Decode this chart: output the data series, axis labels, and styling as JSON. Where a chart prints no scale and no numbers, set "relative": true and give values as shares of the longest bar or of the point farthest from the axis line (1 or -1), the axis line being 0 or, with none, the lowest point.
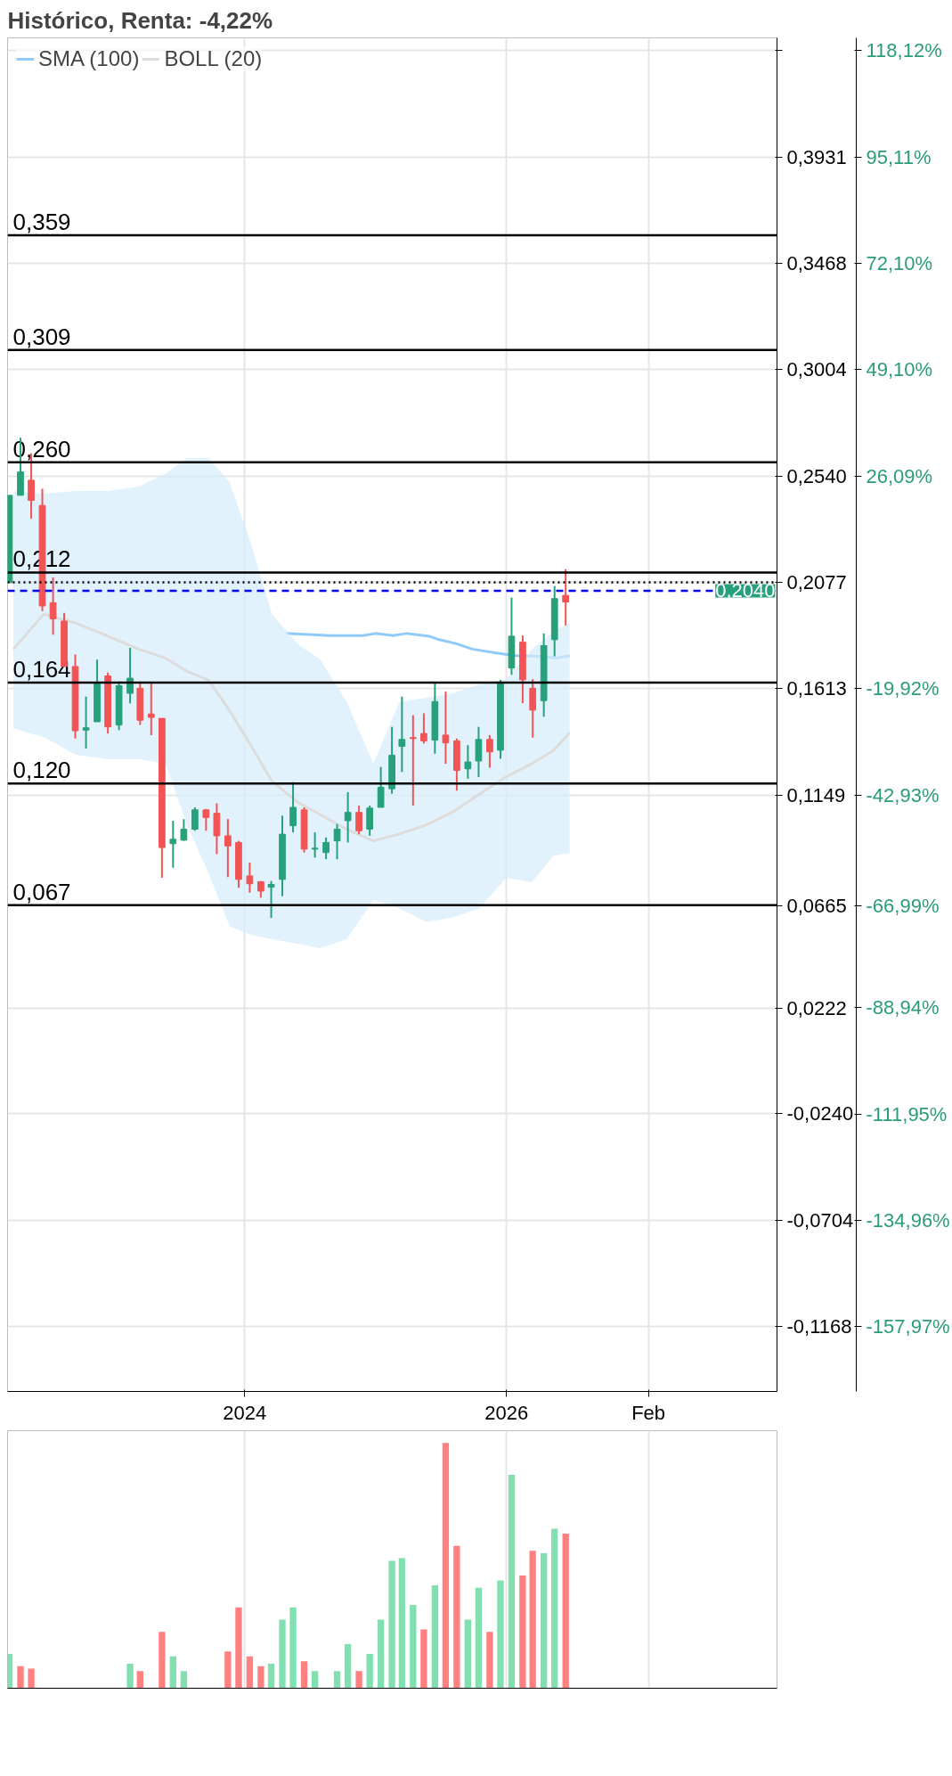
{
  "chart_data": [
    {
      "type": "candlestick",
      "title": "Histórico, Renta: -4,22%",
      "x": [
        "2022-03-15",
        "2022-04-15",
        "2022-05-15",
        "2022-06-15",
        "2022-07-15",
        "2022-08-15",
        "2022-09-15",
        "2022-10-15",
        "2022-11-15",
        "2022-12-15",
        "2023-01-15",
        "2023-02-15",
        "2023-03-15",
        "2023-04-15",
        "2023-05-15",
        "2023-06-15",
        "2023-07-15",
        "2023-08-15",
        "2023-09-15",
        "2023-10-15",
        "2023-11-15",
        "2023-12-15",
        "2024-01-15",
        "2024-02-15",
        "2024-03-15",
        "2024-04-15",
        "2024-05-15",
        "2024-06-15",
        "2024-07-15",
        "2024-08-15",
        "2024-09-15",
        "2024-10-15",
        "2024-11-15",
        "2024-12-15",
        "2025-01-15",
        "2025-02-15",
        "2025-03-15",
        "2025-04-15",
        "2025-05-15",
        "2025-06-15",
        "2025-07-15",
        "2025-08-15",
        "2025-09-15",
        "2025-10-15",
        "2025-11-15",
        "2025-12-15",
        "2026-01-15",
        "2026-02-15",
        "2026-03-15",
        "2026-04-15",
        "2026-05-15",
        "2026-06-15"
      ],
      "ohlc": [
        [
          0.2076,
          0.2456,
          0.2076,
          0.2456
        ],
        [
          0.2456,
          0.2707,
          0.2456,
          0.2558
        ],
        [
          0.2522,
          0.2639,
          0.2354,
          0.2434
        ],
        [
          0.2412,
          0.2485,
          0.1952,
          0.1974
        ],
        [
          0.1988,
          0.2098,
          0.1849,
          0.1918
        ],
        [
          0.1908,
          0.1944,
          0.171,
          0.171
        ],
        [
          0.171,
          0.1762,
          0.1396,
          0.143
        ],
        [
          0.1433,
          0.1579,
          0.1352,
          0.1443
        ],
        [
          0.1469,
          0.174,
          0.1469,
          0.1642
        ],
        [
          0.1669,
          0.1684,
          0.1418,
          0.1447
        ],
        [
          0.1455,
          0.1645,
          0.1433,
          0.1626
        ],
        [
          0.1593,
          0.1791,
          0.155,
          0.1659
        ],
        [
          0.1615,
          0.1645,
          0.1455,
          0.1476
        ],
        [
          0.1503,
          0.1637,
          0.1411,
          0.1488
        ],
        [
          0.1484,
          0.1484,
          0.0789,
          0.0921
        ],
        [
          0.0938,
          0.1038,
          0.0833,
          0.0957
        ],
        [
          0.0953,
          0.1045,
          0.095,
          0.1001
        ],
        [
          0.1001,
          0.1096,
          0.0994,
          0.1085
        ],
        [
          0.1085,
          0.1089,
          0.0994,
          0.1052
        ],
        [
          0.107,
          0.1114,
          0.0892,
          0.0972
        ],
        [
          0.0972,
          0.1045,
          0.0792,
          0.0928
        ],
        [
          0.0943,
          0.095,
          0.0745,
          0.0782
        ],
        [
          0.0797,
          0.0855,
          0.0724,
          0.0763
        ],
        [
          0.0772,
          0.0775,
          0.0702,
          0.0731
        ],
        [
          0.0748,
          0.0775,
          0.0614,
          0.076
        ],
        [
          0.0782,
          0.106,
          0.0709,
          0.0979
        ],
        [
          0.1016,
          0.1206,
          0.0987,
          0.1096
        ],
        [
          0.1085,
          0.1096,
          0.0899,
          0.0914
        ],
        [
          0.0914,
          0.0987,
          0.0877,
          0.0918
        ],
        [
          0.0899,
          0.0965,
          0.087,
          0.0943
        ],
        [
          0.095,
          0.1023,
          0.087,
          0.1001
        ],
        [
          0.1038,
          0.1162,
          0.0943,
          0.1074
        ],
        [
          0.1074,
          0.1104,
          0.0979,
          0.0994
        ],
        [
          0.1001,
          0.1104,
          0.0972,
          0.1093
        ],
        [
          0.1096,
          0.1272,
          0.1096,
          0.1184
        ],
        [
          0.1177,
          0.1447,
          0.1155,
          0.1323
        ],
        [
          0.1362,
          0.1579,
          0.125,
          0.1392
        ],
        [
          0.14,
          0.1498,
          0.1104,
          0.1396
        ],
        [
          0.1418,
          0.1506,
          0.1374,
          0.1386
        ],
        [
          0.1389,
          0.1637,
          0.133,
          0.1557
        ],
        [
          0.1411,
          0.1601,
          0.1286,
          0.1377
        ],
        [
          0.1386,
          0.1396,
          0.1169,
          0.1257
        ],
        [
          0.1264,
          0.1367,
          0.1221,
          0.1294
        ],
        [
          0.1298,
          0.1447,
          0.1228,
          0.1392
        ],
        [
          0.1392,
          0.1411,
          0.1269,
          0.1338
        ],
        [
          0.1345,
          0.1652,
          0.1308,
          0.164
        ],
        [
          0.1703,
          0.201,
          0.1674,
          0.1842
        ],
        [
          0.1816,
          0.1845,
          0.155,
          0.1652
        ],
        [
          0.1615,
          0.1655,
          0.14,
          0.152
        ],
        [
          0.1561,
          0.1854,
          0.1491,
          0.1801
        ],
        [
          0.1827,
          0.2061,
          0.1754,
          0.2006
        ],
        [
          0.202,
          0.2134,
          0.1889,
          0.1991
        ]
      ],
      "colors": [
        "#26a17b",
        "#26a17b",
        "#f05454",
        "#f05454",
        "#f05454",
        "#f05454",
        "#f05454",
        "#26a17b",
        "#26a17b",
        "#f05454",
        "#26a17b",
        "#26a17b",
        "#f05454",
        "#f05454",
        "#f05454",
        "#26a17b",
        "#26a17b",
        "#26a17b",
        "#f05454",
        "#f05454",
        "#f05454",
        "#f05454",
        "#f05454",
        "#f05454",
        "#26a17b",
        "#26a17b",
        "#26a17b",
        "#f05454",
        "#26a17b",
        "#26a17b",
        "#26a17b",
        "#26a17b",
        "#f05454",
        "#26a17b",
        "#26a17b",
        "#26a17b",
        "#26a17b",
        "#f05454",
        "#f05454",
        "#26a17b",
        "#f05454",
        "#f05454",
        "#26a17b",
        "#26a17b",
        "#f05454",
        "#26a17b",
        "#26a17b",
        "#f05454",
        "#f05454",
        "#26a17b",
        "#26a17b",
        "#f05454"
      ],
      "series": [
        {
          "name": "SMA (100)",
          "type": "line",
          "color": "#90caf9",
          "x": [
            "2024-04-25",
            "2024-08-27",
            "2024-11-26",
            "2024-12-30",
            "2025-02-19",
            "2025-03-27",
            "2025-05-30",
            "2025-06-27",
            "2025-08-12",
            "2025-09-27",
            "2025-12-03",
            "2026-01-24",
            "2026-04-05",
            "2026-05-18",
            "2026-06-27"
          ],
          "values": [
            0.1854,
            0.1845,
            0.1845,
            0.1854,
            0.1845,
            0.1854,
            0.1842,
            0.1827,
            0.181,
            0.1786,
            0.1769,
            0.1757,
            0.1754,
            0.1747,
            0.1757
          ]
        },
        {
          "name": "BOLL (20)",
          "type": "line",
          "color": "#dcdcdc",
          "x": [
            "2022-03-26",
            "2022-06-19",
            "2022-09-16",
            "2022-12-14",
            "2023-03-12",
            "2023-05-25",
            "2023-07-24",
            "2023-09-22",
            "2023-11-20",
            "2024-01-19",
            "2024-03-17",
            "2024-05-31",
            "2024-07-29",
            "2024-10-12",
            "2024-12-25",
            "2025-03-08",
            "2025-05-21",
            "2025-08-04",
            "2025-10-17",
            "2025-12-31",
            "2026-03-13",
            "2026-05-12",
            "2026-06-26"
          ],
          "values": [
            0.1785,
            0.1938,
            0.19,
            0.1843,
            0.1785,
            0.1747,
            0.1689,
            0.1651,
            0.1517,
            0.1364,
            0.121,
            0.1115,
            0.1065,
            0.1,
            0.095,
            0.098,
            0.1019,
            0.1076,
            0.1153,
            0.1229,
            0.1287,
            0.1344,
            0.1421
          ],
          "lower": [
            0.144,
            0.1402,
            0.1325,
            0.1306,
            0.1306,
            0.1287,
            0.1019,
            0.0808,
            0.0578,
            0.054,
            0.0521,
            0.0501,
            0.0482,
            0.0521,
            0.0693,
            0.0655,
            0.0597,
            0.0616,
            0.0655,
            0.0789,
            0.077,
            0.0885,
            0.0896
          ],
          "upper": [
            0.2475,
            0.2463,
            0.2475,
            0.2475,
            0.2494,
            0.2551,
            0.262,
            0.262,
            0.2513,
            0.2245,
            0.1938,
            0.1804,
            0.1743,
            0.1555,
            0.1287,
            0.1555,
            0.1574,
            0.1593,
            0.1632,
            0.1655,
            0.1785,
            0.1862,
            0.19
          ]
        }
      ],
      "xlim": [
        "2022-03-10",
        "2028-01-26"
      ],
      "xticks": [
        "2024",
        "2026",
        {
          "value": "2027-02",
          "label": "Feb"
        }
      ],
      "ylim": [
        -0.145,
        0.445
      ],
      "yticks": [
        {
          "value": 0.4394,
          "label": null
        },
        {
          "value": 0.3931,
          "label": "0,3931"
        },
        {
          "value": 0.3468,
          "label": "0,3468"
        },
        {
          "value": 0.3004,
          "label": "0,3004"
        },
        {
          "value": 0.254,
          "label": "0,2540"
        },
        {
          "value": 0.2077,
          "label": "0,2077"
        },
        {
          "value": 0.1613,
          "label": "0,1613"
        },
        {
          "value": 0.1149,
          "label": "0,1149"
        },
        {
          "value": 0.0665,
          "label": "0,0665"
        },
        {
          "value": 0.0222,
          "label": "0,0222"
        },
        {
          "value": -0.024,
          "label": "-0,0240"
        },
        {
          "value": -0.0704,
          "label": "-0,0704"
        },
        {
          "value": -0.1168,
          "label": "-0,1168"
        }
      ],
      "y2lim": [
        -171.98,
        120.91
      ],
      "y2ticks": [
        {
          "value": 118.12,
          "label": "118,12%"
        },
        {
          "value": 95.11,
          "label": "95,11%"
        },
        {
          "value": 72.1,
          "label": "72,10%"
        },
        {
          "value": 49.1,
          "label": "49,10%"
        },
        {
          "value": 26.09,
          "label": "26,09%"
        },
        {
          "value": -19.92,
          "label": "-19,92%"
        },
        {
          "value": -42.93,
          "label": "-42,93%"
        },
        {
          "value": -66.99,
          "label": "-66,99%"
        },
        {
          "value": -88.94,
          "label": "-88,94%"
        },
        {
          "value": -111.95,
          "label": "-111,95%"
        },
        {
          "value": -134.96,
          "label": "-134,96%"
        },
        {
          "value": -157.97,
          "label": "-157,97%"
        }
      ],
      "ref_lines": [
        {
          "axis": "y",
          "value": 0.359,
          "label": "0,359"
        },
        {
          "axis": "y",
          "value": 0.309,
          "label": "0,309"
        },
        {
          "axis": "y",
          "value": 0.26,
          "label": "0,260"
        },
        {
          "axis": "y",
          "value": 0.212,
          "label": "0,212"
        },
        {
          "axis": "y",
          "value": 0.164,
          "label": "0,164"
        },
        {
          "axis": "y",
          "value": 0.12,
          "label": "0,120"
        },
        {
          "axis": "y",
          "value": 0.067,
          "label": "0,067"
        },
        {
          "axis": "y",
          "value": 0.2077,
          "label": null,
          "line_style": "dotted"
        },
        {
          "axis": "y",
          "value": 0.204,
          "label": "0,2040",
          "color": "#0000ff",
          "line_style": "dashed"
        }
      ],
      "grid": true,
      "legend": "top left"
    },
    {
      "type": "bar",
      "relative": true,
      "x": [
        "2022-03-15",
        "2022-04-15",
        "2022-05-15",
        "2023-02-15",
        "2023-03-15",
        "2023-05-15",
        "2023-06-15",
        "2023-07-15",
        "2023-11-15",
        "2023-12-15",
        "2024-01-15",
        "2024-02-15",
        "2024-03-15",
        "2024-04-15",
        "2024-05-15",
        "2024-06-15",
        "2024-07-15",
        "2024-09-15",
        "2024-10-15",
        "2024-11-15",
        "2024-12-15",
        "2025-01-15",
        "2025-02-15",
        "2025-03-15",
        "2025-04-15",
        "2025-05-15",
        "2025-06-15",
        "2025-07-15",
        "2025-08-15",
        "2025-09-15",
        "2025-10-15",
        "2025-11-15",
        "2025-12-15",
        "2026-01-15",
        "2026-02-15",
        "2026-03-15",
        "2026-04-15",
        "2026-05-15",
        "2026-06-15"
      ],
      "values": [
        0.14,
        0.09,
        0.08,
        0.1,
        0.07,
        0.23,
        0.13,
        0.07,
        0.15,
        0.33,
        0.13,
        0.09,
        0.1,
        0.28,
        0.33,
        0.11,
        0.07,
        0.07,
        0.18,
        0.07,
        0.14,
        0.28,
        0.52,
        0.53,
        0.34,
        0.24,
        0.42,
        1,
        0.58,
        0.28,
        0.41,
        0.23,
        0.44,
        0.87,
        0.46,
        0.56,
        0.55,
        0.65,
        0.63
      ],
      "colors": [
        "#82e0b0",
        "#ff8080",
        "#ff8080",
        "#82e0b0",
        "#ff8080",
        "#ff8080",
        "#82e0b0",
        "#82e0b0",
        "#ff8080",
        "#ff8080",
        "#ff8080",
        "#ff8080",
        "#82e0b0",
        "#82e0b0",
        "#82e0b0",
        "#ff8080",
        "#82e0b0",
        "#82e0b0",
        "#82e0b0",
        "#ff8080",
        "#82e0b0",
        "#82e0b0",
        "#82e0b0",
        "#82e0b0",
        "#82e0b0",
        "#ff8080",
        "#82e0b0",
        "#ff8080",
        "#ff8080",
        "#82e0b0",
        "#82e0b0",
        "#ff8080",
        "#82e0b0",
        "#82e0b0",
        "#ff8080",
        "#ff8080",
        "#82e0b0",
        "#82e0b0",
        "#ff8080"
      ],
      "xlim": [
        "2022-03-10",
        "2028-01-26"
      ],
      "xticks": [
        {
          "value": "2024",
          "label": null
        },
        {
          "value": "2026",
          "label": null
        },
        {
          "value": "2027-02",
          "label": null
        }
      ],
      "grid": "x",
      "tick_labels": false
    }
  ]
}
